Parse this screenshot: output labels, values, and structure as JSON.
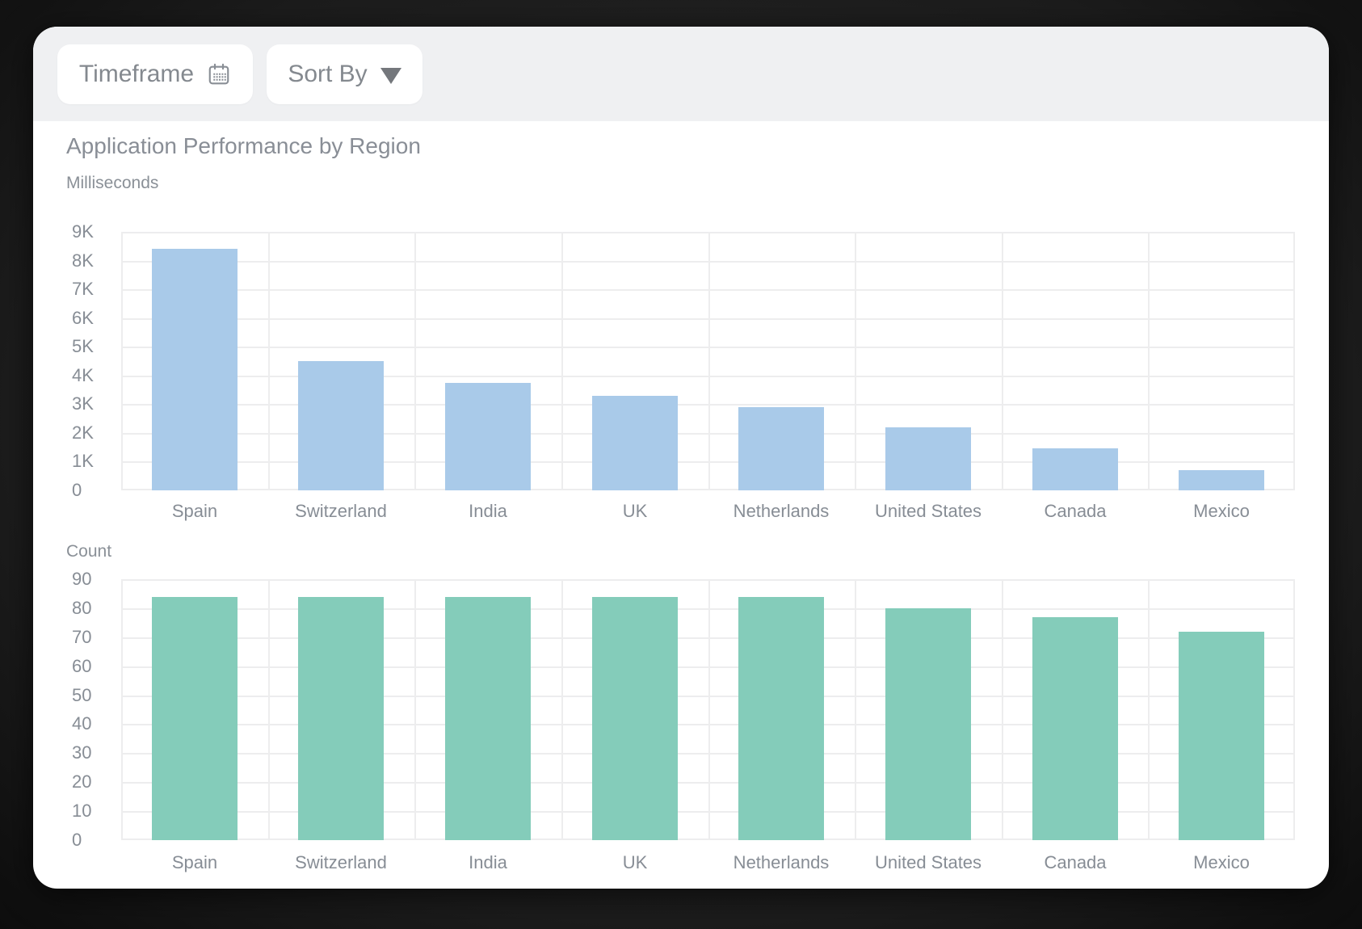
{
  "toolbar": {
    "timeframe_label": "Timeframe",
    "timeframe_icon": "calendar-icon",
    "sort_label": "Sort By",
    "sort_icon": "chevron-down-icon"
  },
  "title": "Application Performance by Region",
  "colors": {
    "bar_blue": "#a9cae9",
    "bar_green": "#84ccba",
    "toolbar_bg": "#eff0f2",
    "text_gray": "#878d95",
    "gridline": "#ededee"
  },
  "chart_data": [
    {
      "type": "bar",
      "ylabel": "Milliseconds",
      "categories": [
        "Spain",
        "Switzerland",
        "India",
        "UK",
        "Netherlands",
        "United States",
        "Canada",
        "Mexico"
      ],
      "values": [
        8400,
        4500,
        3750,
        3300,
        2900,
        2200,
        1450,
        700
      ],
      "ylim": [
        0,
        9000
      ],
      "ytick_labels": [
        "9K",
        "8K",
        "7K",
        "6K",
        "5K",
        "4K",
        "3K",
        "2K",
        "1K",
        "0"
      ],
      "bar_color": "#a9cae9",
      "grid": true,
      "legend": "none"
    },
    {
      "type": "bar",
      "ylabel": "Count",
      "categories": [
        "Spain",
        "Switzerland",
        "India",
        "UK",
        "Netherlands",
        "United States",
        "Canada",
        "Mexico"
      ],
      "values": [
        84,
        84,
        84,
        84,
        84,
        80,
        77,
        72
      ],
      "ylim": [
        0,
        90
      ],
      "ytick_labels": [
        "90",
        "80",
        "70",
        "60",
        "50",
        "40",
        "30",
        "20",
        "10",
        "0"
      ],
      "bar_color": "#84ccba",
      "grid": true,
      "legend": "none"
    }
  ]
}
